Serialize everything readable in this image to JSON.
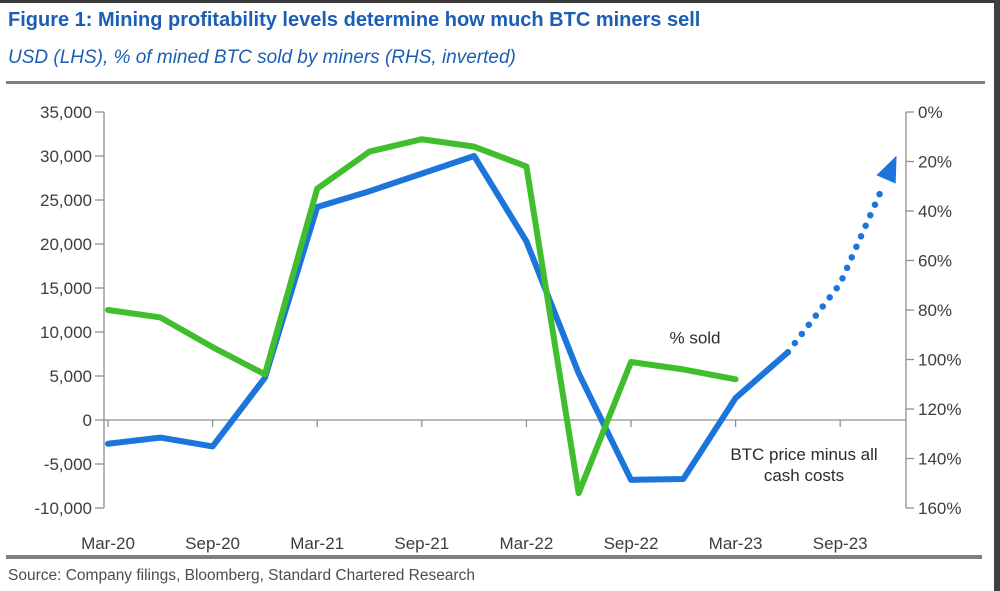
{
  "page": {
    "title": "Figure 1: Mining profitability levels determine how much BTC miners sell",
    "subtitle": "USD (LHS), % of mined BTC sold by miners (RHS, inverted)",
    "source": "Source: Company filings, Bloomberg, Standard Chartered Research"
  },
  "annotations": {
    "pct_sold": {
      "text": "% sold"
    },
    "btc_costs": {
      "line1": "BTC price minus all",
      "line2": "cash costs"
    }
  },
  "colors": {
    "title_blue": "#1b5eb3",
    "line_blue": "#1b75db",
    "line_green": "#41be2e",
    "axis_gray": "#8f8f8f",
    "tick_text": "#3c3c44"
  },
  "chart_data": {
    "type": "line",
    "title": "Mining profitability levels determine how much BTC miners sell",
    "subtitle": "USD (LHS), % of mined BTC sold by miners (RHS, inverted)",
    "x_axis": {
      "tick_labels": [
        "Mar-20",
        "Sep-20",
        "Mar-21",
        "Sep-21",
        "Mar-22",
        "Sep-22",
        "Mar-23",
        "Sep-23"
      ],
      "quarters": [
        "Mar-20",
        "Jun-20",
        "Sep-20",
        "Dec-20",
        "Mar-21",
        "Jun-21",
        "Sep-21",
        "Dec-21",
        "Mar-22",
        "Jun-22",
        "Sep-22",
        "Dec-22",
        "Mar-23",
        "Jun-23",
        "Sep-23",
        "Dec-23"
      ]
    },
    "left_axis": {
      "label": "USD",
      "min": -10000,
      "max": 35000,
      "step": 5000,
      "tick_labels": [
        "35,000",
        "30,000",
        "25,000",
        "20,000",
        "15,000",
        "10,000",
        "5,000",
        "0",
        "-5,000",
        "-10,000"
      ]
    },
    "right_axis": {
      "label": "% of mined BTC sold by miners",
      "min": 0,
      "max": 160,
      "step": 20,
      "inverted": true,
      "tick_labels": [
        "0%",
        "20%",
        "40%",
        "60%",
        "80%",
        "100%",
        "120%",
        "140%",
        "160%"
      ]
    },
    "legend_position": "none",
    "grid": false,
    "series": [
      {
        "name": "BTC price minus all cash costs",
        "axis": "left",
        "style": "solid",
        "color": "#1b75db",
        "quarters": [
          "Mar-20",
          "Jun-20",
          "Sep-20",
          "Dec-20",
          "Mar-21",
          "Jun-21",
          "Sep-21",
          "Dec-21",
          "Mar-22",
          "Jun-22",
          "Sep-22",
          "Dec-22",
          "Mar-23",
          "Jun-23"
        ],
        "values": [
          -2700,
          -2000,
          -3000,
          4800,
          24200,
          26000,
          28000,
          30000,
          20300,
          5300,
          -6800,
          -6700,
          2500,
          7700
        ]
      },
      {
        "name": "% sold",
        "axis": "right",
        "style": "solid",
        "color": "#41be2e",
        "quarters": [
          "Mar-20",
          "Jun-20",
          "Sep-20",
          "Dec-20",
          "Mar-21",
          "Jun-21",
          "Sep-21",
          "Dec-21",
          "Mar-22",
          "Jun-22",
          "Sep-22",
          "Dec-22",
          "Mar-23"
        ],
        "values": [
          80,
          83,
          95,
          106,
          31,
          16,
          11,
          14,
          22,
          154,
          101,
          104,
          108
        ]
      },
      {
        "name": "BTC price minus all cash costs projection",
        "axis": "left",
        "style": "dotted",
        "arrow": true,
        "color": "#1b75db",
        "quarters": [
          "Jun-23",
          "Sep-23",
          "Dec-23"
        ],
        "values": [
          7700,
          15500,
          29000
        ]
      }
    ]
  }
}
